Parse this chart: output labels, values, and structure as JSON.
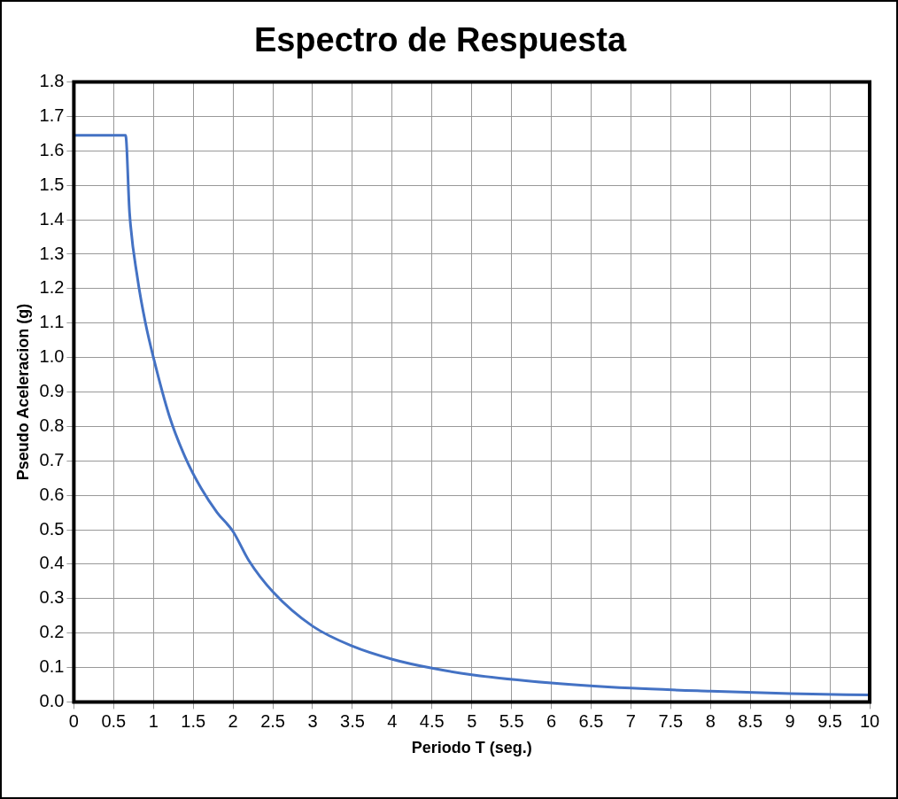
{
  "chart_data": {
    "type": "line",
    "title": "Espectro de Respuesta",
    "xlabel": "Periodo T (seg.)",
    "ylabel": "Pseudo Aceleracion (g)",
    "xlim": [
      0,
      10
    ],
    "ylim": [
      0,
      1.8
    ],
    "xticks": [
      0,
      0.5,
      1,
      1.5,
      2,
      2.5,
      3,
      3.5,
      4,
      4.5,
      5,
      5.5,
      6,
      6.5,
      7,
      7.5,
      8,
      8.5,
      9,
      9.5,
      10
    ],
    "yticks": [
      {
        "value": 0,
        "label": "0.0"
      },
      {
        "value": 0.1,
        "label": "0.1"
      },
      {
        "value": 0.2,
        "label": "0.2"
      },
      {
        "value": 0.3,
        "label": "0.3"
      },
      {
        "value": 0.4,
        "label": "0.4"
      },
      {
        "value": 0.5,
        "label": "0.5"
      },
      {
        "value": 0.6,
        "label": "0.6"
      },
      {
        "value": 0.7,
        "label": "0.7"
      },
      {
        "value": 0.8,
        "label": "0.8"
      },
      {
        "value": 0.9,
        "label": "0.9"
      },
      {
        "value": 1,
        "label": "1.0"
      },
      {
        "value": 1.1,
        "label": "1.1"
      },
      {
        "value": 1.2,
        "label": "1.2"
      },
      {
        "value": 1.3,
        "label": "1.3"
      },
      {
        "value": 1.4,
        "label": "1.4"
      },
      {
        "value": 1.5,
        "label": "1.5"
      },
      {
        "value": 1.6,
        "label": "1.6"
      },
      {
        "value": 1.7,
        "label": "1.7"
      },
      {
        "value": 1.8,
        "label": "1.8"
      }
    ],
    "grid": true,
    "legend": false,
    "marker": "none",
    "line_style": "solid",
    "series": [
      {
        "color": "#4472c4",
        "x": [
          0,
          0.65,
          0.7,
          0.8,
          0.9,
          1,
          1.2,
          1.4,
          1.6,
          1.8,
          2,
          2.2,
          2.5,
          3,
          3.5,
          4,
          4.5,
          5,
          6,
          7,
          8,
          9,
          10
        ],
        "values": [
          1.645,
          1.645,
          1.42,
          1.23,
          1.1,
          1.0,
          0.83,
          0.71,
          0.62,
          0.55,
          0.495,
          0.41,
          0.32,
          0.22,
          0.162,
          0.124,
          0.098,
          0.079,
          0.055,
          0.04,
          0.031,
          0.024,
          0.02
        ]
      }
    ]
  }
}
